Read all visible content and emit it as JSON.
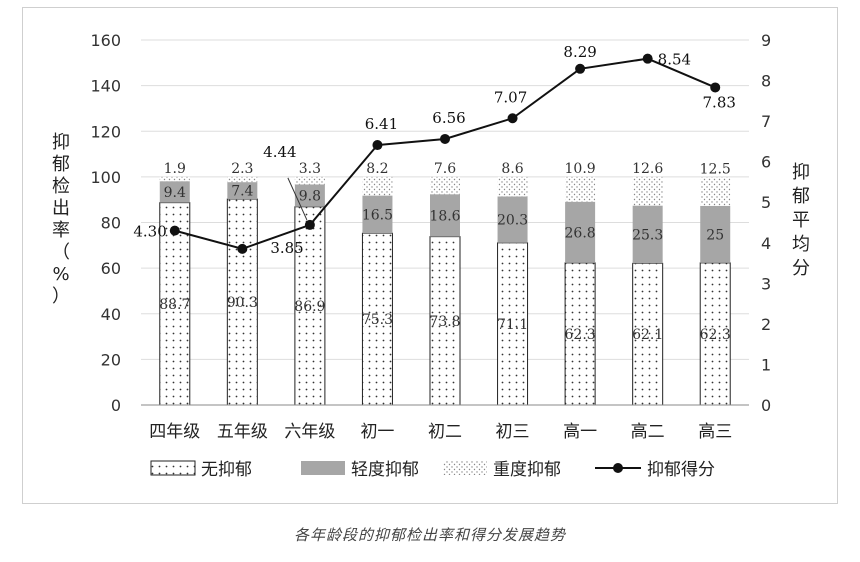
{
  "caption": "各年龄段的抑郁检出率和得分发展趋势",
  "chart_data": {
    "type": "bar",
    "subtype": "stacked-bar-with-line",
    "categories": [
      "四年级",
      "五年级",
      "六年级",
      "初一",
      "初二",
      "初三",
      "高一",
      "高二",
      "高三"
    ],
    "series": [
      {
        "name": "无抑郁",
        "values": [
          88.7,
          90.3,
          86.9,
          75.3,
          73.8,
          71.1,
          62.3,
          62.1,
          62.3
        ]
      },
      {
        "name": "轻度抑郁",
        "values": [
          9.4,
          7.4,
          9.8,
          16.5,
          18.6,
          20.3,
          26.8,
          25.3,
          25
        ]
      },
      {
        "name": "重度抑郁",
        "values": [
          1.9,
          2.3,
          3.3,
          8.2,
          7.6,
          8.6,
          10.9,
          12.6,
          12.5
        ]
      }
    ],
    "line": {
      "name": "抑郁得分",
      "values": [
        4.3,
        3.85,
        4.44,
        6.41,
        6.56,
        7.07,
        8.29,
        8.54,
        7.83
      ]
    },
    "line_labels": [
      "4.30",
      "3.85",
      "4.44",
      "6.41",
      "6.56",
      "7.07",
      "8.29",
      "8.54",
      "7.83"
    ],
    "y_left": {
      "label": "抑郁检出率（%）",
      "range": [
        0,
        160
      ],
      "ticks": [
        0,
        20,
        40,
        60,
        80,
        100,
        120,
        140,
        160
      ]
    },
    "y_right": {
      "label": "抑郁平均分",
      "range": [
        0,
        9
      ],
      "ticks": [
        0,
        1,
        2,
        3,
        4,
        5,
        6,
        7,
        8,
        9
      ]
    },
    "grid": true,
    "legend_position": "bottom"
  },
  "colors": {
    "mild": "#a6a6a6",
    "none_fill": "#ffffff",
    "severe_dots": "#9a9a9a",
    "line": "#111111",
    "grid": "#dddddd"
  }
}
